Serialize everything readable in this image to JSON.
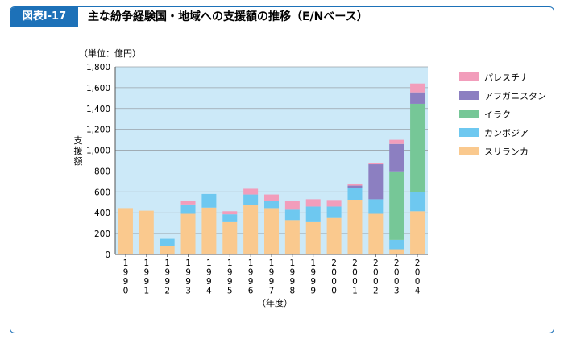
{
  "figure": {
    "label": "図表Ⅰ-17",
    "title": "主な紛争経験国・地域への支援額の推移（E/Nベース）"
  },
  "chart_data": {
    "type": "bar",
    "stacked": true,
    "unit_label": "（単位：億円）",
    "ylabel": "支援額",
    "xlabel": "（年度）",
    "ylim": [
      0,
      1800
    ],
    "yticks": [
      0,
      200,
      400,
      600,
      800,
      1000,
      1200,
      1400,
      1600,
      1800
    ],
    "ytick_labels": [
      "0",
      "200",
      "400",
      "600",
      "800",
      "1,000",
      "1,200",
      "1,400",
      "1,600",
      "1,800"
    ],
    "categories": [
      "1990",
      "1991",
      "1992",
      "1993",
      "1994",
      "1995",
      "1996",
      "1997",
      "1998",
      "1999",
      "2000",
      "2001",
      "2002",
      "2003",
      "2004"
    ],
    "legend_position": "right",
    "series": [
      {
        "name": "スリランカ",
        "color": "#fac98e",
        "values": [
          445,
          420,
          80,
          390,
          450,
          310,
          475,
          445,
          330,
          310,
          350,
          520,
          390,
          50,
          415
        ]
      },
      {
        "name": "カンボジア",
        "color": "#6ec8f0",
        "values": [
          0,
          0,
          70,
          90,
          130,
          75,
          100,
          65,
          100,
          150,
          110,
          120,
          140,
          90,
          180
        ]
      },
      {
        "name": "イラク",
        "color": "#76c797",
        "values": [
          0,
          0,
          0,
          0,
          0,
          0,
          0,
          0,
          0,
          0,
          0,
          0,
          0,
          650,
          850
        ]
      },
      {
        "name": "アフガニスタン",
        "color": "#8c7fc1",
        "values": [
          0,
          0,
          0,
          0,
          0,
          0,
          0,
          0,
          0,
          0,
          0,
          20,
          335,
          270,
          110
        ]
      },
      {
        "name": "パレスチナ",
        "color": "#f29dbb",
        "values": [
          0,
          0,
          0,
          30,
          0,
          30,
          55,
          65,
          80,
          70,
          55,
          20,
          10,
          40,
          85
        ]
      }
    ]
  }
}
